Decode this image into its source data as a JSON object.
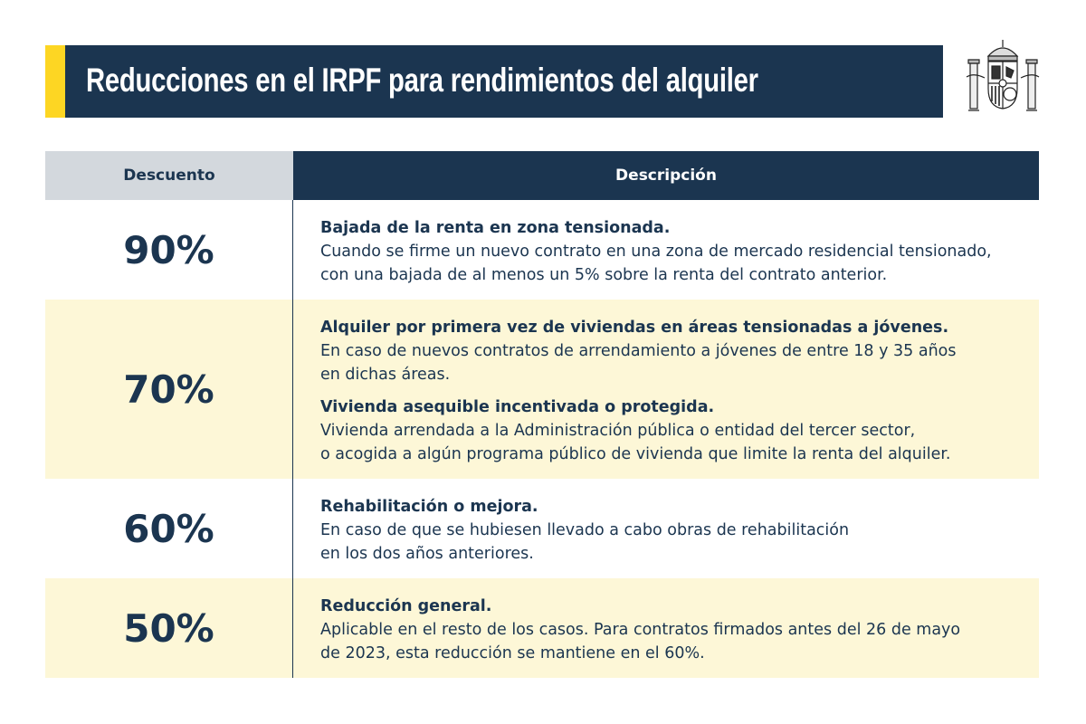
{
  "header": {
    "title": "Reducciones en el IRPF para rendimientos del alquiler",
    "logo": "coat-of-arms-of-spain"
  },
  "colors": {
    "navy": "#1b3550",
    "yellow": "#fdd623",
    "gray": "#d3d8dd",
    "cream": "#fdf7d7"
  },
  "table": {
    "columns": [
      "Descuento",
      "Descripción"
    ],
    "rows": [
      {
        "discount": "90%",
        "items": [
          {
            "title": "Bajada de la renta en zona tensionada.",
            "lines": [
              "Cuando se firme un nuevo contrato en una zona de mercado residencial tensionado,",
              "con una bajada de al menos un 5% sobre la renta del contrato anterior."
            ]
          }
        ]
      },
      {
        "discount": "70%",
        "items": [
          {
            "title": "Alquiler por primera vez de viviendas en áreas tensionadas a jóvenes.",
            "lines": [
              "En caso de nuevos contratos de arrendamiento a jóvenes de entre 18 y 35 años",
              "en dichas áreas."
            ]
          },
          {
            "title": "Vivienda asequible incentivada o protegida.",
            "lines": [
              "Vivienda arrendada a la Administración pública o entidad del tercer sector,",
              "o acogida a algún programa público de vivienda que limite la renta del alquiler."
            ]
          }
        ]
      },
      {
        "discount": "60%",
        "items": [
          {
            "title": "Rehabilitación o mejora.",
            "lines": [
              "En caso de que se hubiesen llevado a cabo obras de rehabilitación",
              "en los dos años anteriores."
            ]
          }
        ]
      },
      {
        "discount": "50%",
        "items": [
          {
            "title": "Reducción general.",
            "lines": [
              "Aplicable en el resto de los casos. Para contratos firmados antes del 26 de mayo",
              "de 2023, esta reducción se mantiene en el 60%."
            ]
          }
        ]
      }
    ]
  }
}
